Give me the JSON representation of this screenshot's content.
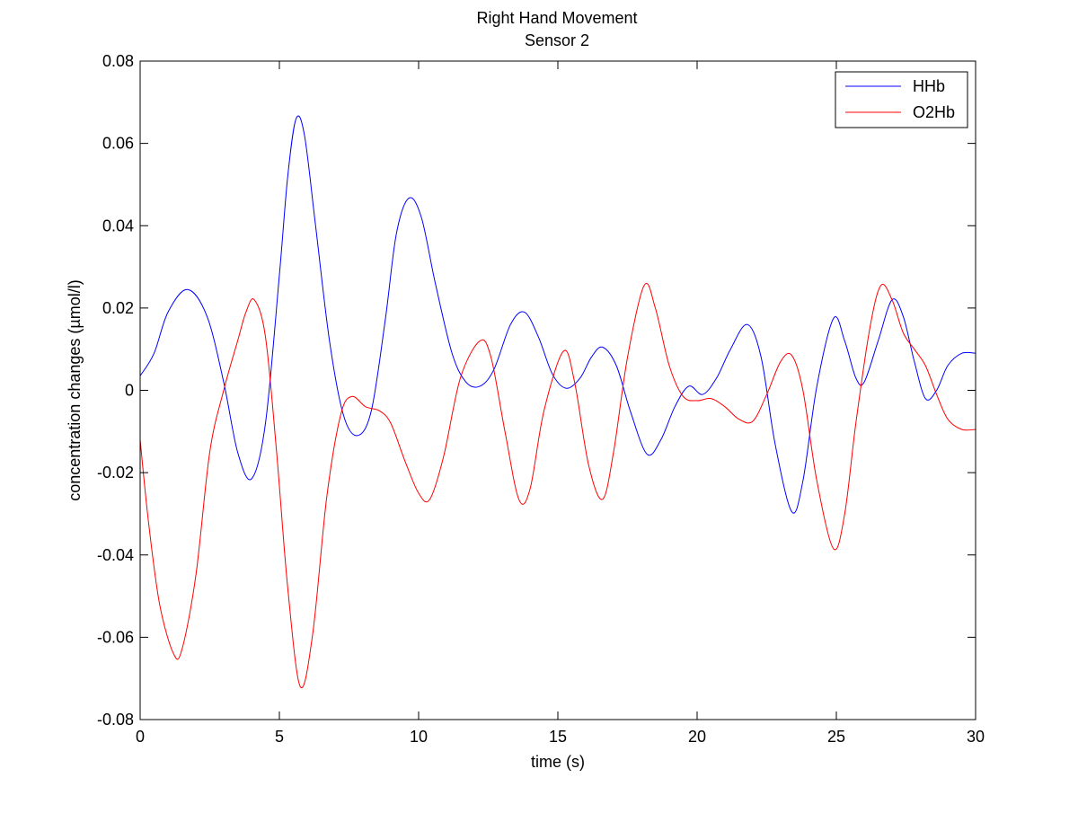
{
  "chart_data": {
    "type": "line",
    "title": "Right Hand Movement",
    "subtitle": "Sensor 2",
    "xlabel": "time (s)",
    "ylabel": "concentration changes (µmol/l)",
    "xlim": [
      0,
      30
    ],
    "ylim": [
      -0.08,
      0.08
    ],
    "xticks": [
      0,
      5,
      10,
      15,
      20,
      25,
      30
    ],
    "xtick_labels": [
      "0",
      "5",
      "10",
      "15",
      "20",
      "25",
      "30"
    ],
    "yticks": [
      -0.08,
      -0.06,
      -0.04,
      -0.02,
      0,
      0.02,
      0.04,
      0.06,
      0.08
    ],
    "ytick_labels": [
      "-0.08",
      "-0.06",
      "-0.04",
      "-0.02",
      "0",
      "0.02",
      "0.04",
      "0.06",
      "0.08"
    ],
    "grid": false,
    "legend_position": "top-right",
    "series": [
      {
        "name": "HHb",
        "color": "#0000ff",
        "points": [
          [
            0,
            0.0035
          ],
          [
            0.5,
            0.009
          ],
          [
            1.0,
            0.019
          ],
          [
            1.7,
            0.0245
          ],
          [
            2.4,
            0.018
          ],
          [
            3.0,
            0.002
          ],
          [
            3.5,
            -0.015
          ],
          [
            4.0,
            -0.0215
          ],
          [
            4.5,
            -0.008
          ],
          [
            5.0,
            0.028
          ],
          [
            5.3,
            0.052
          ],
          [
            5.6,
            0.066
          ],
          [
            5.9,
            0.062
          ],
          [
            6.3,
            0.04
          ],
          [
            6.8,
            0.012
          ],
          [
            7.3,
            -0.006
          ],
          [
            7.8,
            -0.011
          ],
          [
            8.3,
            -0.005
          ],
          [
            8.8,
            0.017
          ],
          [
            9.2,
            0.038
          ],
          [
            9.65,
            0.0467
          ],
          [
            10.1,
            0.042
          ],
          [
            10.6,
            0.026
          ],
          [
            11.2,
            0.009
          ],
          [
            11.7,
            0.002
          ],
          [
            12.2,
            0.001
          ],
          [
            12.7,
            0.005
          ],
          [
            13.3,
            0.016
          ],
          [
            13.8,
            0.019
          ],
          [
            14.3,
            0.013
          ],
          [
            14.8,
            0.004
          ],
          [
            15.3,
            0.0005
          ],
          [
            15.8,
            0.003
          ],
          [
            16.2,
            0.008
          ],
          [
            16.6,
            0.0105
          ],
          [
            17.1,
            0.006
          ],
          [
            17.6,
            -0.005
          ],
          [
            18.2,
            -0.0155
          ],
          [
            18.7,
            -0.012
          ],
          [
            19.2,
            -0.004
          ],
          [
            19.7,
            0.001
          ],
          [
            20.2,
            -0.001
          ],
          [
            20.7,
            0.003
          ],
          [
            21.2,
            0.01
          ],
          [
            21.8,
            0.016
          ],
          [
            22.3,
            0.008
          ],
          [
            22.8,
            -0.013
          ],
          [
            23.4,
            -0.0295
          ],
          [
            23.8,
            -0.022
          ],
          [
            24.3,
            0.001
          ],
          [
            24.9,
            0.0175
          ],
          [
            25.3,
            0.012
          ],
          [
            25.7,
            0.003
          ],
          [
            26.0,
            0.002
          ],
          [
            26.5,
            0.012
          ],
          [
            27.0,
            0.022
          ],
          [
            27.4,
            0.018
          ],
          [
            27.8,
            0.007
          ],
          [
            28.2,
            -0.002
          ],
          [
            28.6,
            0.0
          ],
          [
            29.0,
            0.006
          ],
          [
            29.5,
            0.009
          ],
          [
            30.0,
            0.009
          ]
        ]
      },
      {
        "name": "O2Hb",
        "color": "#ff0000",
        "points": [
          [
            0,
            -0.012
          ],
          [
            0.3,
            -0.032
          ],
          [
            0.7,
            -0.052
          ],
          [
            1.2,
            -0.064
          ],
          [
            1.5,
            -0.063
          ],
          [
            2.0,
            -0.045
          ],
          [
            2.5,
            -0.015
          ],
          [
            3.0,
            0.0
          ],
          [
            3.5,
            0.012
          ],
          [
            3.8,
            0.019
          ],
          [
            4.1,
            0.022
          ],
          [
            4.5,
            0.013
          ],
          [
            4.9,
            -0.015
          ],
          [
            5.3,
            -0.048
          ],
          [
            5.75,
            -0.072
          ],
          [
            6.2,
            -0.059
          ],
          [
            6.7,
            -0.026
          ],
          [
            7.2,
            -0.006
          ],
          [
            7.6,
            -0.0015
          ],
          [
            8.1,
            -0.004
          ],
          [
            8.6,
            -0.005
          ],
          [
            9.0,
            -0.008
          ],
          [
            9.5,
            -0.017
          ],
          [
            10.0,
            -0.025
          ],
          [
            10.4,
            -0.0265
          ],
          [
            10.9,
            -0.016
          ],
          [
            11.5,
            0.003
          ],
          [
            12.2,
            0.012
          ],
          [
            12.6,
            0.008
          ],
          [
            13.1,
            -0.01
          ],
          [
            13.6,
            -0.0265
          ],
          [
            14.0,
            -0.024
          ],
          [
            14.5,
            -0.005
          ],
          [
            15.2,
            0.0095
          ],
          [
            15.6,
            0.002
          ],
          [
            16.1,
            -0.018
          ],
          [
            16.6,
            -0.0265
          ],
          [
            17.0,
            -0.015
          ],
          [
            17.5,
            0.008
          ],
          [
            18.1,
            0.0255
          ],
          [
            18.5,
            0.02
          ],
          [
            19.0,
            0.006
          ],
          [
            19.5,
            -0.0015
          ],
          [
            20.0,
            -0.0025
          ],
          [
            20.5,
            -0.002
          ],
          [
            21.0,
            -0.004
          ],
          [
            21.5,
            -0.007
          ],
          [
            22.0,
            -0.0075
          ],
          [
            22.5,
            -0.001
          ],
          [
            23.0,
            0.007
          ],
          [
            23.4,
            0.0085
          ],
          [
            23.8,
            0.0
          ],
          [
            24.3,
            -0.022
          ],
          [
            24.9,
            -0.0385
          ],
          [
            25.3,
            -0.03
          ],
          [
            25.7,
            -0.008
          ],
          [
            26.2,
            0.015
          ],
          [
            26.6,
            0.0255
          ],
          [
            27.0,
            0.022
          ],
          [
            27.4,
            0.014
          ],
          [
            27.8,
            0.01
          ],
          [
            28.2,
            0.006
          ],
          [
            28.6,
            -0.001
          ],
          [
            29.0,
            -0.007
          ],
          [
            29.5,
            -0.0095
          ],
          [
            30.0,
            -0.0095
          ]
        ]
      }
    ]
  }
}
